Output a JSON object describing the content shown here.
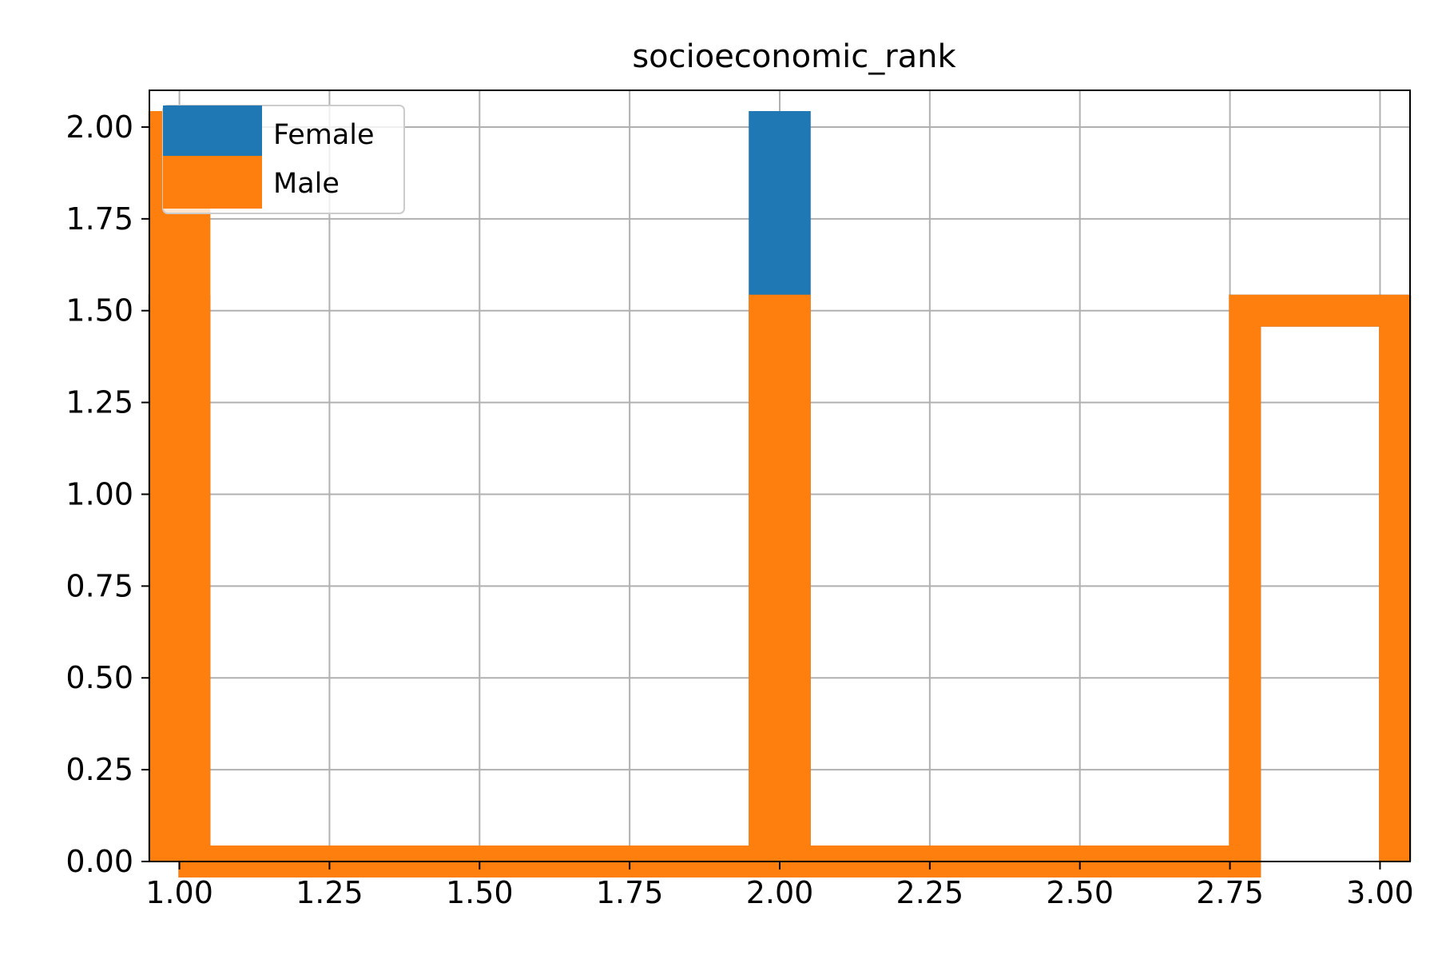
{
  "chart_data": {
    "type": "histogram-step",
    "title": "socioeconomic_rank",
    "xlabel": "",
    "ylabel": "",
    "xlim": [
      0.95,
      3.05
    ],
    "ylim": [
      0,
      2.1
    ],
    "xticks": [
      "1.00",
      "1.25",
      "1.50",
      "1.75",
      "2.00",
      "2.25",
      "2.50",
      "2.75",
      "3.00"
    ],
    "yticks": [
      "0.00",
      "0.25",
      "0.50",
      "0.75",
      "1.00",
      "1.25",
      "1.50",
      "1.75",
      "2.00"
    ],
    "grid": true,
    "legend_position": "upper-left",
    "bin_edges": [
      1.0,
      1.2,
      1.4,
      1.6,
      1.8,
      2.0,
      2.2,
      2.4,
      2.6,
      2.8,
      3.0
    ],
    "series": [
      {
        "name": "Female",
        "color": "#1f77b4",
        "values": [
          1.5,
          0,
          0,
          0,
          0,
          2.0,
          0,
          0,
          0,
          1.5
        ]
      },
      {
        "name": "Male",
        "color": "#ff7f0e",
        "values": [
          2.0,
          0,
          0,
          0,
          0,
          1.5,
          0,
          0,
          0,
          1.5
        ]
      }
    ]
  }
}
